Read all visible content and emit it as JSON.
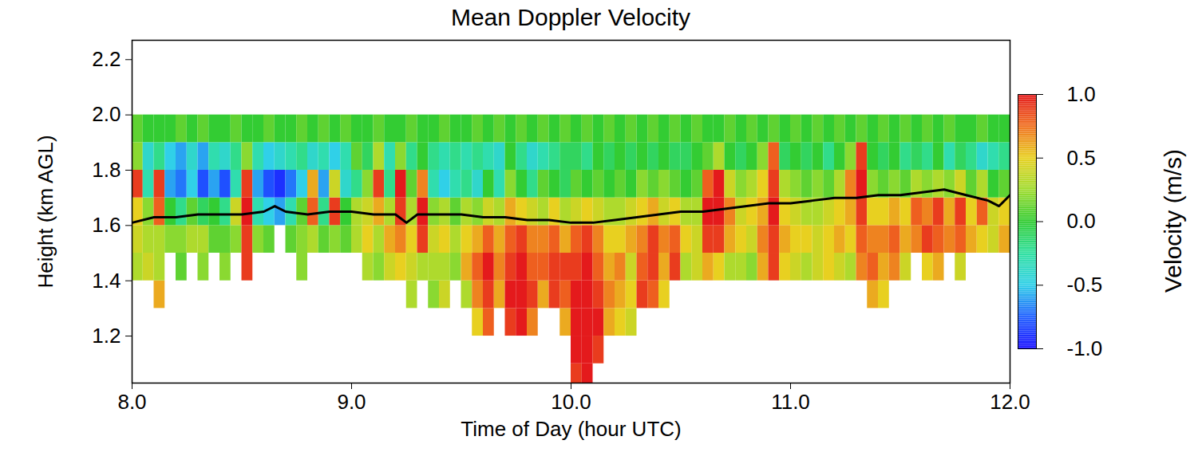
{
  "chart_data": {
    "type": "heatmap",
    "title": "Mean Doppler Velocity",
    "x_label": "Time of Day (hour UTC)",
    "y_label": "Height (km AGL)",
    "xlim": [
      8.0,
      12.0
    ],
    "xticks": [
      {
        "value": 8,
        "label": "8.0"
      },
      {
        "value": 9,
        "label": "9.0"
      },
      {
        "value": 10,
        "label": "10.0"
      },
      {
        "value": 11,
        "label": "11.0"
      },
      {
        "value": 12,
        "label": "12.0"
      }
    ],
    "ylim": [
      1.03,
      2.27
    ],
    "yticks": [
      {
        "value": 1.2,
        "label": "1.2"
      },
      {
        "value": 1.4,
        "label": "1.4"
      },
      {
        "value": 1.6,
        "label": "1.6"
      },
      {
        "value": 1.8,
        "label": "1.8"
      },
      {
        "value": 2.0,
        "label": "2.0"
      },
      {
        "value": 2.2,
        "label": "2.2"
      }
    ],
    "x_bins": [
      8.0,
      8.05,
      8.1,
      8.15,
      8.2,
      8.25,
      8.3,
      8.35,
      8.4,
      8.45,
      8.5,
      8.55,
      8.6,
      8.65,
      8.7,
      8.75,
      8.8,
      8.85,
      8.9,
      8.95,
      9.0,
      9.05,
      9.1,
      9.15,
      9.2,
      9.25,
      9.3,
      9.35,
      9.4,
      9.45,
      9.5,
      9.55,
      9.6,
      9.65,
      9.7,
      9.75,
      9.8,
      9.85,
      9.9,
      9.95,
      10.0,
      10.05,
      10.1,
      10.15,
      10.2,
      10.25,
      10.3,
      10.35,
      10.4,
      10.45,
      10.5,
      10.55,
      10.6,
      10.65,
      10.7,
      10.75,
      10.8,
      10.85,
      10.9,
      10.95,
      11.0,
      11.05,
      11.1,
      11.15,
      11.2,
      11.25,
      11.3,
      11.35,
      11.4,
      11.45,
      11.5,
      11.55,
      11.6,
      11.65,
      11.7,
      11.75,
      11.8,
      11.85,
      11.9,
      11.95,
      12.0
    ],
    "y_bins": [
      1.0,
      1.1,
      1.2,
      1.3,
      1.4,
      1.5,
      1.6,
      1.7,
      1.8,
      1.9,
      2.0
    ],
    "values": [
      [
        null,
        null,
        null,
        null,
        0.3,
        0.4,
        0.5,
        0.9,
        0.2,
        0.1
      ],
      [
        null,
        null,
        null,
        null,
        0.4,
        0.3,
        0.2,
        -0.3,
        -0.4,
        0.0
      ],
      [
        null,
        null,
        null,
        0.6,
        0.3,
        0.3,
        0.8,
        0.9,
        -0.2,
        0.0
      ],
      [
        null,
        null,
        null,
        null,
        null,
        0.2,
        0.0,
        -0.6,
        -0.5,
        0.0
      ],
      [
        null,
        null,
        null,
        null,
        0.1,
        0.2,
        -0.2,
        -0.7,
        -0.6,
        0.1
      ],
      [
        null,
        null,
        null,
        null,
        null,
        0.3,
        0.1,
        -0.5,
        -0.4,
        0.0
      ],
      [
        null,
        null,
        null,
        null,
        0.2,
        0.3,
        -0.1,
        -0.8,
        -0.6,
        0.1
      ],
      [
        null,
        null,
        null,
        null,
        null,
        0.1,
        0.0,
        -0.6,
        -0.3,
        0.0
      ],
      [
        null,
        null,
        null,
        null,
        0.2,
        0.1,
        -0.2,
        -0.8,
        -0.4,
        0.0
      ],
      [
        null,
        null,
        null,
        null,
        null,
        0.2,
        0.4,
        -0.3,
        -0.2,
        0.1
      ],
      [
        null,
        null,
        null,
        null,
        0.9,
        0.9,
        1.0,
        0.9,
        0.2,
        0.0
      ],
      [
        null,
        null,
        null,
        null,
        null,
        0.2,
        -0.3,
        -0.6,
        -0.3,
        0.0
      ],
      [
        null,
        null,
        null,
        null,
        null,
        0.1,
        -0.5,
        -0.8,
        -0.5,
        0.1
      ],
      [
        null,
        null,
        null,
        null,
        null,
        null,
        -0.6,
        -0.9,
        -0.4,
        0.0
      ],
      [
        null,
        null,
        null,
        null,
        null,
        0.1,
        -0.3,
        -0.7,
        -0.3,
        0.0
      ],
      [
        null,
        null,
        null,
        null,
        0.2,
        0.2,
        0.1,
        -0.5,
        -0.2,
        0.1
      ],
      [
        null,
        null,
        null,
        null,
        null,
        0.3,
        0.8,
        0.6,
        -0.4,
        0.0
      ],
      [
        null,
        null,
        null,
        null,
        null,
        0.1,
        -0.2,
        -0.6,
        -0.3,
        0.1
      ],
      [
        null,
        null,
        null,
        null,
        null,
        0.2,
        0.9,
        0.4,
        -0.5,
        0.0
      ],
      [
        null,
        null,
        null,
        null,
        null,
        0.1,
        0.0,
        -0.4,
        -0.3,
        0.1
      ],
      [
        null,
        null,
        null,
        null,
        null,
        0.3,
        0.3,
        -0.2,
        0.1,
        0.0
      ],
      [
        null,
        null,
        null,
        null,
        0.3,
        0.5,
        0.4,
        0.2,
        -0.1,
        0.0
      ],
      [
        null,
        null,
        null,
        null,
        0.2,
        0.3,
        0.6,
        0.9,
        0.3,
        0.1
      ],
      [
        null,
        null,
        null,
        null,
        0.4,
        0.6,
        0.3,
        -0.2,
        -0.3,
        0.0
      ],
      [
        null,
        null,
        null,
        null,
        0.5,
        0.7,
        0.9,
        1.0,
        0.2,
        0.0
      ],
      [
        null,
        null,
        null,
        0.3,
        0.4,
        0.5,
        0.3,
        0.1,
        -0.2,
        0.1
      ],
      [
        null,
        null,
        null,
        null,
        0.3,
        0.9,
        1.0,
        0.7,
        0.0,
        0.0
      ],
      [
        null,
        null,
        null,
        0.2,
        0.3,
        0.4,
        0.2,
        -0.3,
        -0.2,
        0.0
      ],
      [
        null,
        null,
        null,
        0.4,
        0.3,
        0.5,
        0.3,
        -0.5,
        -0.3,
        0.1
      ],
      [
        null,
        null,
        null,
        null,
        0.2,
        0.3,
        0.1,
        -0.3,
        -0.2,
        0.0
      ],
      [
        null,
        null,
        null,
        0.3,
        0.6,
        0.5,
        0.3,
        -0.2,
        -0.3,
        0.0
      ],
      [
        null,
        null,
        0.5,
        0.7,
        0.8,
        0.6,
        0.2,
        -0.4,
        -0.2,
        0.1
      ],
      [
        null,
        null,
        0.8,
        0.9,
        1.0,
        0.8,
        0.4,
        0.0,
        -0.3,
        0.0
      ],
      [
        null,
        null,
        null,
        0.6,
        0.7,
        0.6,
        0.3,
        -0.3,
        -0.4,
        0.1
      ],
      [
        null,
        null,
        0.9,
        1.0,
        0.9,
        0.8,
        0.6,
        0.2,
        0.0,
        0.0
      ],
      [
        null,
        null,
        1.0,
        1.0,
        1.0,
        0.9,
        0.5,
        0.0,
        -0.2,
        0.1
      ],
      [
        null,
        null,
        0.7,
        0.9,
        0.8,
        0.7,
        0.4,
        -0.2,
        -0.4,
        0.0
      ],
      [
        null,
        null,
        null,
        0.6,
        0.8,
        0.7,
        0.3,
        0.1,
        -0.3,
        0.1
      ],
      [
        null,
        null,
        null,
        0.9,
        0.9,
        0.8,
        0.5,
        0.0,
        -0.2,
        0.0
      ],
      [
        null,
        null,
        0.6,
        0.8,
        0.9,
        0.6,
        0.3,
        -0.1,
        -0.1,
        0.1
      ],
      [
        0.9,
        1.0,
        1.0,
        1.0,
        0.9,
        0.8,
        0.4,
        0.1,
        -0.1,
        0.0
      ],
      [
        1.0,
        1.0,
        1.0,
        1.0,
        1.0,
        0.9,
        0.5,
        0.0,
        -0.2,
        0.1
      ],
      [
        null,
        0.9,
        1.0,
        0.9,
        0.8,
        0.7,
        0.4,
        0.1,
        0.0,
        0.0
      ],
      [
        null,
        null,
        0.6,
        0.7,
        0.6,
        0.5,
        0.3,
        0.0,
        -0.1,
        0.1
      ],
      [
        null,
        null,
        0.5,
        0.6,
        0.7,
        0.5,
        0.3,
        0.1,
        0.0,
        0.0
      ],
      [
        null,
        null,
        0.4,
        0.5,
        0.4,
        0.6,
        0.4,
        0.0,
        -0.1,
        0.1
      ],
      [
        null,
        null,
        null,
        0.9,
        0.8,
        0.7,
        0.5,
        0.2,
        0.0,
        0.0
      ],
      [
        null,
        null,
        null,
        0.8,
        0.9,
        0.9,
        0.6,
        0.1,
        -0.1,
        0.1
      ],
      [
        null,
        null,
        null,
        0.5,
        0.6,
        0.7,
        0.4,
        0.2,
        0.0,
        0.0
      ],
      [
        null,
        null,
        null,
        null,
        0.9,
        0.8,
        0.5,
        0.1,
        -0.1,
        0.1
      ],
      [
        null,
        null,
        null,
        null,
        0.3,
        0.5,
        0.3,
        0.0,
        -0.1,
        0.0
      ],
      [
        null,
        null,
        null,
        null,
        0.4,
        0.4,
        0.3,
        0.1,
        0.0,
        0.1
      ],
      [
        null,
        null,
        null,
        null,
        0.6,
        0.9,
        1.0,
        0.8,
        0.1,
        0.0
      ],
      [
        null,
        null,
        null,
        null,
        0.5,
        0.9,
        1.0,
        1.0,
        0.3,
        0.0
      ],
      [
        null,
        null,
        null,
        null,
        0.3,
        0.6,
        0.7,
        0.4,
        0.0,
        0.1
      ],
      [
        null,
        null,
        null,
        null,
        0.3,
        0.5,
        0.4,
        0.2,
        -0.1,
        0.0
      ],
      [
        null,
        null,
        null,
        null,
        0.2,
        0.4,
        0.5,
        0.3,
        0.0,
        0.1
      ],
      [
        null,
        null,
        null,
        null,
        0.6,
        0.7,
        0.6,
        0.5,
        0.2,
        0.0
      ],
      [
        null,
        null,
        null,
        null,
        0.9,
        0.9,
        1.0,
        0.9,
        0.8,
        0.1
      ],
      [
        null,
        null,
        null,
        null,
        0.5,
        0.6,
        0.5,
        0.3,
        -0.1,
        0.0
      ],
      [
        null,
        null,
        null,
        null,
        0.4,
        0.5,
        0.4,
        0.2,
        0.0,
        0.1
      ],
      [
        null,
        null,
        null,
        null,
        0.3,
        0.5,
        0.3,
        0.1,
        -0.1,
        0.0
      ],
      [
        null,
        null,
        null,
        null,
        0.4,
        0.4,
        0.3,
        0.2,
        0.0,
        0.1
      ],
      [
        null,
        null,
        null,
        null,
        0.5,
        0.5,
        0.4,
        0.1,
        -0.2,
        0.0
      ],
      [
        null,
        null,
        null,
        null,
        0.4,
        0.6,
        0.5,
        0.3,
        0.0,
        0.1
      ],
      [
        null,
        null,
        null,
        null,
        0.3,
        0.5,
        0.6,
        0.7,
        0.2,
        0.0
      ],
      [
        null,
        null,
        null,
        null,
        0.7,
        0.8,
        0.9,
        1.0,
        0.9,
        0.1
      ],
      [
        null,
        null,
        null,
        0.6,
        0.8,
        0.7,
        0.5,
        0.2,
        0.0,
        0.0
      ],
      [
        null,
        null,
        null,
        0.5,
        0.6,
        0.7,
        0.5,
        0.1,
        -0.1,
        0.1
      ],
      [
        null,
        null,
        null,
        null,
        0.7,
        0.8,
        0.6,
        0.2,
        0.0,
        0.0
      ],
      [
        null,
        null,
        null,
        null,
        0.4,
        0.6,
        0.5,
        0.1,
        -0.2,
        0.1
      ],
      [
        null,
        null,
        null,
        null,
        null,
        0.7,
        0.8,
        0.3,
        -0.1,
        0.0
      ],
      [
        null,
        null,
        null,
        null,
        0.5,
        0.9,
        0.7,
        0.2,
        -0.2,
        0.1
      ],
      [
        null,
        null,
        null,
        null,
        0.6,
        0.8,
        0.9,
        0.3,
        0.0,
        0.0
      ],
      [
        null,
        null,
        null,
        null,
        null,
        0.7,
        0.6,
        0.2,
        -0.3,
        0.1
      ],
      [
        null,
        null,
        null,
        null,
        0.4,
        0.8,
        0.9,
        0.4,
        -0.1,
        0.0
      ],
      [
        null,
        null,
        null,
        null,
        null,
        0.6,
        0.5,
        0.1,
        -0.2,
        0.0
      ],
      [
        null,
        null,
        null,
        null,
        null,
        0.5,
        0.8,
        0.3,
        -0.4,
        0.1
      ],
      [
        null,
        null,
        null,
        null,
        null,
        0.4,
        0.4,
        0.0,
        -0.3,
        0.0
      ],
      [
        null,
        null,
        null,
        null,
        null,
        0.6,
        0.5,
        0.1,
        -0.2,
        0.0
      ]
    ],
    "colorbar": {
      "label": "Velocity (m/s)",
      "range": [
        -1.0,
        1.0
      ],
      "ticks": [
        {
          "value": -1,
          "label": "-1.0"
        },
        {
          "value": -0.5,
          "label": "-0.5"
        },
        {
          "value": 0,
          "label": "0.0"
        },
        {
          "value": 0.5,
          "label": "0.5"
        },
        {
          "value": 1,
          "label": "1.0"
        }
      ]
    },
    "series": [
      {
        "type": "line",
        "color": "black",
        "x": [
          8.0,
          8.1,
          8.2,
          8.3,
          8.4,
          8.5,
          8.6,
          8.65,
          8.7,
          8.8,
          8.9,
          9.0,
          9.1,
          9.2,
          9.25,
          9.3,
          9.4,
          9.5,
          9.6,
          9.7,
          9.8,
          9.9,
          10.0,
          10.1,
          10.2,
          10.3,
          10.4,
          10.5,
          10.6,
          10.7,
          10.8,
          10.9,
          11.0,
          11.1,
          11.2,
          11.3,
          11.4,
          11.5,
          11.6,
          11.7,
          11.8,
          11.9,
          11.95,
          12.0
        ],
        "values": [
          1.61,
          1.63,
          1.63,
          1.64,
          1.64,
          1.64,
          1.65,
          1.67,
          1.65,
          1.64,
          1.65,
          1.65,
          1.64,
          1.64,
          1.61,
          1.64,
          1.64,
          1.64,
          1.63,
          1.63,
          1.62,
          1.62,
          1.61,
          1.61,
          1.62,
          1.63,
          1.64,
          1.65,
          1.65,
          1.66,
          1.67,
          1.68,
          1.68,
          1.69,
          1.7,
          1.7,
          1.71,
          1.71,
          1.72,
          1.73,
          1.71,
          1.69,
          1.67,
          1.71
        ]
      }
    ]
  }
}
